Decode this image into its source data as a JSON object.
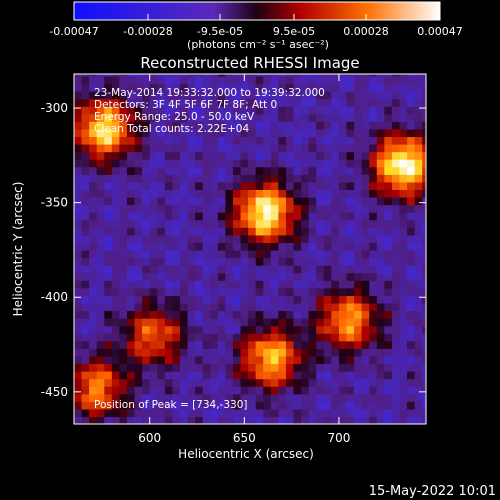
{
  "chart_data": {
    "type": "heatmap",
    "title": "Reconstructed RHESSI Image",
    "xlabel": "Heliocentric X (arcsec)",
    "ylabel": "Heliocentric Y (arcsec)",
    "xlim": [
      560,
      746
    ],
    "ylim": [
      -467,
      -282
    ],
    "x_ticks": [
      "600",
      "650",
      "700"
    ],
    "x_tick_values": [
      600,
      650,
      700
    ],
    "y_ticks": [
      "-300",
      "-350",
      "-400",
      "-450"
    ],
    "y_tick_values": [
      -300,
      -350,
      -400,
      -450
    ],
    "colorbar": {
      "min": -0.00047,
      "max": 0.00047,
      "tick_labels": [
        "-0.00047",
        "-0.00028",
        "-9.5e-05",
        "9.5e-05",
        "0.00028",
        "0.00047"
      ],
      "tick_values": [
        -0.00047,
        -0.00028,
        -9.5e-05,
        9.5e-05,
        0.00028,
        0.00047
      ],
      "units": "(photons cm⁻² s⁻¹ asec⁻²)"
    },
    "annotations": [
      "23-May-2014 19:33:32.000 to 19:39:32.000",
      "Detectors: 3F 4F 5F 6F 7F 8F; Att 0",
      "Energy Range: 25.0 - 50.0 keV",
      "Clean    Total counts: 2.22E+04",
      "Position of Peak = [734,-330]"
    ],
    "sources": [
      {
        "x": 576,
        "y": -311,
        "peak": 0.0004
      },
      {
        "x": 661,
        "y": -355,
        "peak": 0.00045
      },
      {
        "x": 734,
        "y": -330,
        "peak": 0.00047
      },
      {
        "x": 664,
        "y": -432,
        "peak": 0.00034
      },
      {
        "x": 705,
        "y": -412,
        "peak": 0.0003
      },
      {
        "x": 602,
        "y": -420,
        "peak": 0.00022
      },
      {
        "x": 572,
        "y": -448,
        "peak": 0.00026
      }
    ]
  },
  "footer": {
    "timestamp": "15-May-2022 10:01"
  }
}
